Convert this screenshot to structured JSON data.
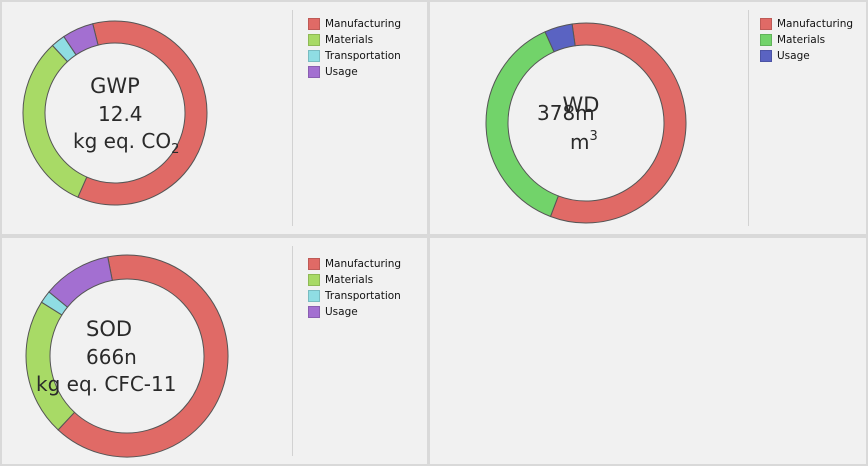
{
  "chart_data": [
    {
      "type": "pie",
      "title": "GWP",
      "value": "12.4",
      "unit": "kg eq. CO",
      "unit_sub": "2",
      "categories": [
        "Manufacturing",
        "Materials",
        "Transportation",
        "Usage"
      ],
      "values": [
        60.5,
        31.5,
        2.5,
        5.5
      ],
      "colors": [
        "#e06a66",
        "#a8da66",
        "#8fdde3",
        "#a36fd1"
      ],
      "legend_position": "right"
    },
    {
      "type": "pie",
      "title": "WD",
      "value": "378m",
      "unit": "m",
      "unit_sup": "3",
      "categories": [
        "Manufacturing",
        "Materials",
        "Usage"
      ],
      "values": [
        58,
        37.5,
        4.5
      ],
      "colors": [
        "#e06a66",
        "#72d36a",
        "#5a63c2"
      ],
      "legend_position": "right"
    },
    {
      "type": "pie",
      "title": "SOD",
      "value": "666n",
      "unit": "kg eq. CFC-11",
      "categories": [
        "Manufacturing",
        "Materials",
        "Transportation",
        "Usage"
      ],
      "values": [
        65,
        22,
        2,
        11
      ],
      "colors": [
        "#e06a66",
        "#a8da66",
        "#8fdde3",
        "#a36fd1"
      ],
      "legend_position": "right"
    }
  ]
}
